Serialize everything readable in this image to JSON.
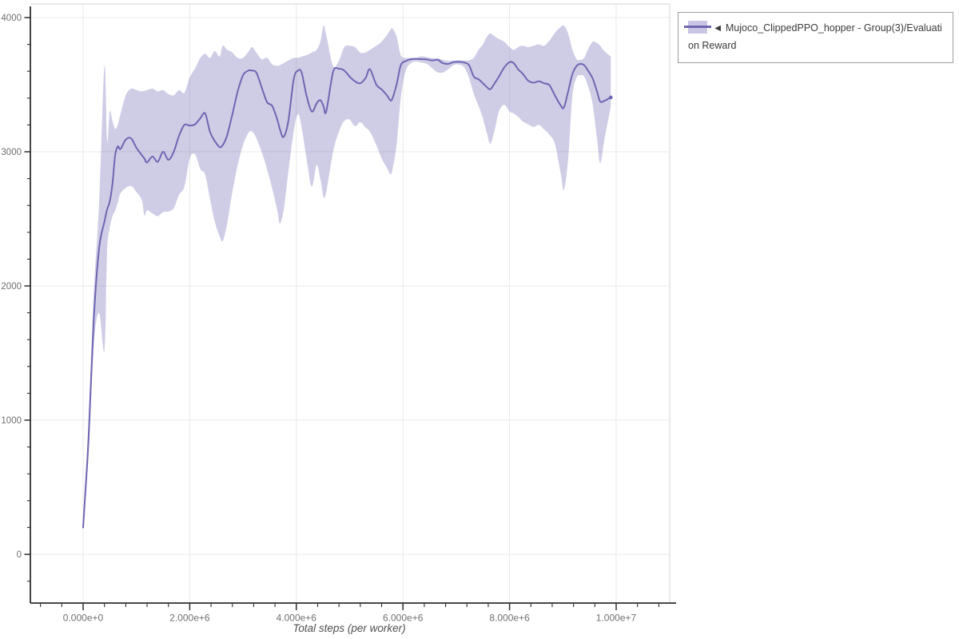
{
  "colors": {
    "line": "#6e66b2",
    "band_fill": "rgba(110,102,178,0.33)",
    "band_solid": "#c9c5e4",
    "grid": "#e8e8e8",
    "plot_border": "#dcdcdc",
    "axis": "#2e2e2e",
    "tick_label": "#6f6f6f",
    "axis_title": "#4f4f4f",
    "legend_border": "#9e9e9e",
    "legend_text": "#3a3a3a",
    "background": "#ffffff"
  },
  "legend": {
    "items": [
      {
        "label": "◄ Mujoco_ClippedPPO_hopper - Group(3)/Evaluation Reward",
        "color": "#6e66b2"
      }
    ]
  },
  "chart_data": {
    "type": "line",
    "title": "",
    "xlabel": "Total steps (per worker)",
    "ylabel": "",
    "grid": true,
    "legend_position": "outside-top-right",
    "x_unit": "steps (x values below are in millions of steps)",
    "xlim_e6": [
      -1.0,
      11.1
    ],
    "ylim": [
      -365,
      4100
    ],
    "x_ticks": {
      "values_e6": [
        0,
        2,
        4,
        6,
        8,
        10
      ],
      "labels": [
        "0.000e+0",
        "2.000e+6",
        "4.000e+6",
        "6.000e+6",
        "8.000e+6",
        "1.000e+7"
      ],
      "minor_step_e6": 0.4,
      "minor_range_e6": [
        -0.8,
        10.8
      ]
    },
    "y_ticks": {
      "values": [
        0,
        1000,
        2000,
        3000,
        4000
      ],
      "labels": [
        "0",
        "1000",
        "2000",
        "3000",
        "4000"
      ],
      "minor_step": 200,
      "minor_range": [
        -200,
        3800
      ]
    },
    "series": [
      {
        "name": "Mujoco_ClippedPPO_hopper - Group(3)/Evaluation Reward",
        "color": "#6e66b2",
        "band_fill": "rgba(110,102,178,0.33)",
        "points_format": [
          "x_millions_of_steps",
          "mean_reward",
          "band_lower",
          "band_upper"
        ],
        "points": [
          [
            0.0,
            200,
            200,
            200
          ],
          [
            0.1,
            850,
            720,
            980
          ],
          [
            0.2,
            1750,
            1550,
            1950
          ],
          [
            0.3,
            2280,
            1800,
            2620
          ],
          [
            0.4,
            2480,
            1520,
            3640
          ],
          [
            0.45,
            2570,
            2250,
            3080
          ],
          [
            0.5,
            2630,
            2430,
            3300
          ],
          [
            0.55,
            2760,
            2520,
            3230
          ],
          [
            0.6,
            2970,
            2560,
            3170
          ],
          [
            0.65,
            3040,
            2620,
            3200
          ],
          [
            0.7,
            3020,
            2690,
            3280
          ],
          [
            0.8,
            3090,
            2730,
            3420
          ],
          [
            0.9,
            3100,
            2745,
            3470
          ],
          [
            1.0,
            3030,
            2700,
            3460
          ],
          [
            1.1,
            2975,
            2640,
            3450
          ],
          [
            1.15,
            2950,
            2525,
            3455
          ],
          [
            1.2,
            2920,
            2565,
            3460
          ],
          [
            1.3,
            2965,
            2540,
            3470
          ],
          [
            1.4,
            2925,
            2520,
            3450
          ],
          [
            1.5,
            3000,
            2550,
            3460
          ],
          [
            1.6,
            2940,
            2555,
            3430
          ],
          [
            1.7,
            3000,
            2580,
            3420
          ],
          [
            1.8,
            3120,
            2680,
            3460
          ],
          [
            1.9,
            3200,
            2740,
            3440
          ],
          [
            2.0,
            3195,
            2950,
            3555
          ],
          [
            2.1,
            3205,
            2980,
            3620
          ],
          [
            2.2,
            3250,
            2870,
            3700
          ],
          [
            2.29,
            3285,
            2830,
            3730
          ],
          [
            2.38,
            3150,
            2650,
            3700
          ],
          [
            2.47,
            3080,
            2480,
            3750
          ],
          [
            2.56,
            3035,
            2370,
            3710
          ],
          [
            2.62,
            3050,
            2335,
            3790
          ],
          [
            2.7,
            3120,
            2460,
            3760
          ],
          [
            2.8,
            3280,
            2700,
            3740
          ],
          [
            2.9,
            3450,
            2900,
            3700
          ],
          [
            3.0,
            3570,
            3050,
            3700
          ],
          [
            3.1,
            3605,
            3140,
            3745
          ],
          [
            3.17,
            3605,
            3150,
            3780
          ],
          [
            3.25,
            3590,
            3100,
            3740
          ],
          [
            3.35,
            3480,
            3000,
            3690
          ],
          [
            3.45,
            3370,
            2870,
            3700
          ],
          [
            3.55,
            3340,
            2720,
            3650
          ],
          [
            3.65,
            3230,
            2550,
            3640
          ],
          [
            3.69,
            3170,
            2465,
            3645
          ],
          [
            3.76,
            3110,
            2560,
            3660
          ],
          [
            3.85,
            3230,
            2850,
            3680
          ],
          [
            3.95,
            3540,
            3150,
            3700
          ],
          [
            4.03,
            3605,
            3280,
            3700
          ],
          [
            4.1,
            3590,
            3180,
            3710
          ],
          [
            4.19,
            3420,
            2950,
            3720
          ],
          [
            4.29,
            3300,
            2740,
            3740
          ],
          [
            4.38,
            3360,
            2900,
            3760
          ],
          [
            4.45,
            3385,
            2800,
            3820
          ],
          [
            4.51,
            3340,
            2665,
            3940
          ],
          [
            4.56,
            3300,
            2700,
            3870
          ],
          [
            4.69,
            3595,
            3000,
            3640
          ],
          [
            4.8,
            3618,
            3150,
            3680
          ],
          [
            4.9,
            3605,
            3230,
            3780
          ],
          [
            5.0,
            3560,
            3240,
            3790
          ],
          [
            5.1,
            3525,
            3190,
            3780
          ],
          [
            5.2,
            3510,
            3220,
            3740
          ],
          [
            5.3,
            3550,
            3180,
            3740
          ],
          [
            5.38,
            3615,
            3150,
            3760
          ],
          [
            5.5,
            3500,
            3050,
            3790
          ],
          [
            5.6,
            3465,
            2950,
            3820
          ],
          [
            5.7,
            3420,
            2880,
            3870
          ],
          [
            5.76,
            3385,
            2835,
            3905
          ],
          [
            5.8,
            3395,
            2860,
            3920
          ],
          [
            5.88,
            3500,
            3050,
            3860
          ],
          [
            5.96,
            3645,
            3400,
            3720
          ],
          [
            6.05,
            3675,
            3600,
            3700
          ],
          [
            6.15,
            3690,
            3660,
            3700
          ],
          [
            6.25,
            3692,
            3672,
            3702
          ],
          [
            6.35,
            3690,
            3665,
            3712
          ],
          [
            6.45,
            3688,
            3655,
            3705
          ],
          [
            6.55,
            3680,
            3622,
            3698
          ],
          [
            6.65,
            3685,
            3592,
            3697
          ],
          [
            6.75,
            3660,
            3590,
            3685
          ],
          [
            6.85,
            3655,
            3615,
            3678
          ],
          [
            6.95,
            3668,
            3645,
            3680
          ],
          [
            7.05,
            3670,
            3650,
            3682
          ],
          [
            7.15,
            3665,
            3630,
            3680
          ],
          [
            7.24,
            3645,
            3550,
            3682
          ],
          [
            7.33,
            3560,
            3430,
            3700
          ],
          [
            7.42,
            3540,
            3340,
            3760
          ],
          [
            7.5,
            3510,
            3250,
            3800
          ],
          [
            7.58,
            3480,
            3130,
            3860
          ],
          [
            7.64,
            3466,
            3060,
            3883
          ],
          [
            7.72,
            3510,
            3160,
            3860
          ],
          [
            7.8,
            3560,
            3300,
            3840
          ],
          [
            7.9,
            3628,
            3350,
            3820
          ],
          [
            8.0,
            3668,
            3300,
            3780
          ],
          [
            8.08,
            3660,
            3285,
            3760
          ],
          [
            8.16,
            3615,
            3260,
            3780
          ],
          [
            8.25,
            3580,
            3225,
            3790
          ],
          [
            8.35,
            3530,
            3205,
            3780
          ],
          [
            8.45,
            3515,
            3185,
            3790
          ],
          [
            8.55,
            3525,
            3200,
            3800
          ],
          [
            8.65,
            3510,
            3165,
            3790
          ],
          [
            8.75,
            3495,
            3125,
            3830
          ],
          [
            8.85,
            3420,
            3060,
            3885
          ],
          [
            8.96,
            3345,
            2840,
            3930
          ],
          [
            9.02,
            3330,
            2715,
            3940
          ],
          [
            9.1,
            3450,
            2950,
            3880
          ],
          [
            9.18,
            3580,
            3420,
            3760
          ],
          [
            9.26,
            3640,
            3555,
            3690
          ],
          [
            9.33,
            3655,
            3570,
            3685
          ],
          [
            9.4,
            3645,
            3560,
            3700
          ],
          [
            9.48,
            3600,
            3480,
            3770
          ],
          [
            9.56,
            3545,
            3350,
            3820
          ],
          [
            9.64,
            3450,
            3100,
            3810
          ],
          [
            9.7,
            3375,
            2915,
            3790
          ],
          [
            9.78,
            3380,
            3090,
            3750
          ],
          [
            9.9,
            3405,
            3340,
            3710
          ]
        ]
      }
    ]
  }
}
